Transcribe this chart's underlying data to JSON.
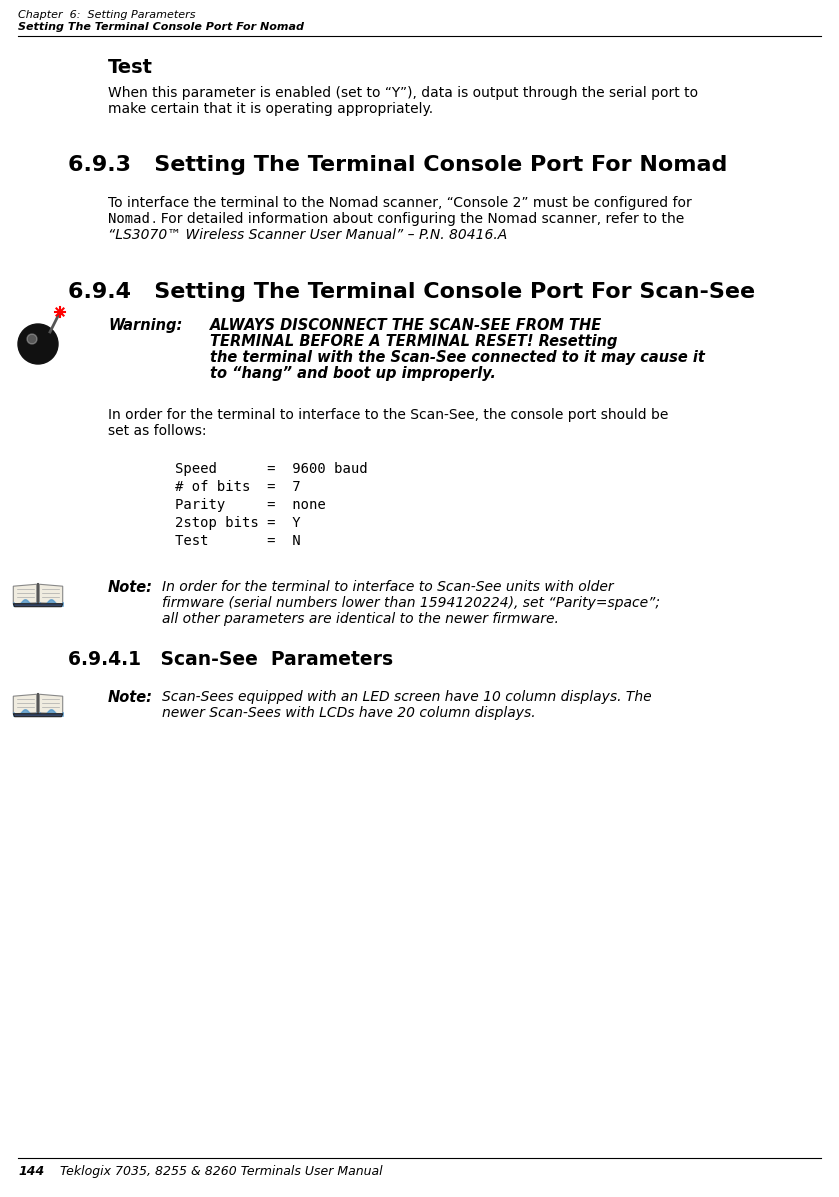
{
  "header_line1": "Chapter  6:  Setting Parameters",
  "header_line2": "Setting The Terminal Console Port For Nomad",
  "footer_page": "144",
  "footer_text": "Teklogix 7035, 8255 & 8260 Terminals User Manual",
  "section_test_title": "Test",
  "section_test_body1": "When this parameter is enabled (set to “Y”), data is output through the serial port to",
  "section_test_body2": "make certain that it is operating appropriately.",
  "section_693_title": "6.9.3   Setting The Terminal Console Port For Nomad",
  "section_693_body1": "To interface the terminal to the Nomad scanner, “Console 2” must be configured for",
  "section_693_body2a": "Nomad",
  "section_693_body2b": ". For detailed information about configuring the Nomad scanner, refer to the",
  "section_693_body3": "“LS3070™ Wireless Scanner User Manual” – P.N. 80416.A",
  "section_694_title": "6.9.4   Setting The Terminal Console Port For Scan-See",
  "warning_label": "Warning:",
  "warning_line1": "ALWAYS DISCONNECT THE SCAN-SEE FROM THE",
  "warning_line2": "TERMINAL BEFORE A TERMINAL RESET! Resetting",
  "warning_line3": "the terminal with the Scan-See connected to it may cause it",
  "warning_line4": "to “hang” and boot up improperly.",
  "para_scansee1": "In order for the terminal to interface to the Scan-See, the console port should be",
  "para_scansee2": "set as follows:",
  "code_line1": "Speed      =  9600 baud",
  "code_line2": "# of bits  =  7",
  "code_line3": "Parity     =  none",
  "code_line4": "2stop bits =  Y",
  "code_line5": "Test       =  N",
  "note1_label": "Note:",
  "note1_line1": "In order for the terminal to interface to Scan-See units with older",
  "note1_line2": "firmware (serial numbers lower than 1594120224), set “Parity=space”;",
  "note1_line3": "all other parameters are identical to the newer firmware.",
  "section_6941_title": "6.9.4.1   Scan-See  Parameters",
  "note2_label": "Note:",
  "note2_line1": "Scan-Sees equipped with an LED screen have 10 column displays. The",
  "note2_line2": "newer Scan-Sees with LCDs have 20 column displays.",
  "bg_color": "#ffffff",
  "text_color": "#000000"
}
